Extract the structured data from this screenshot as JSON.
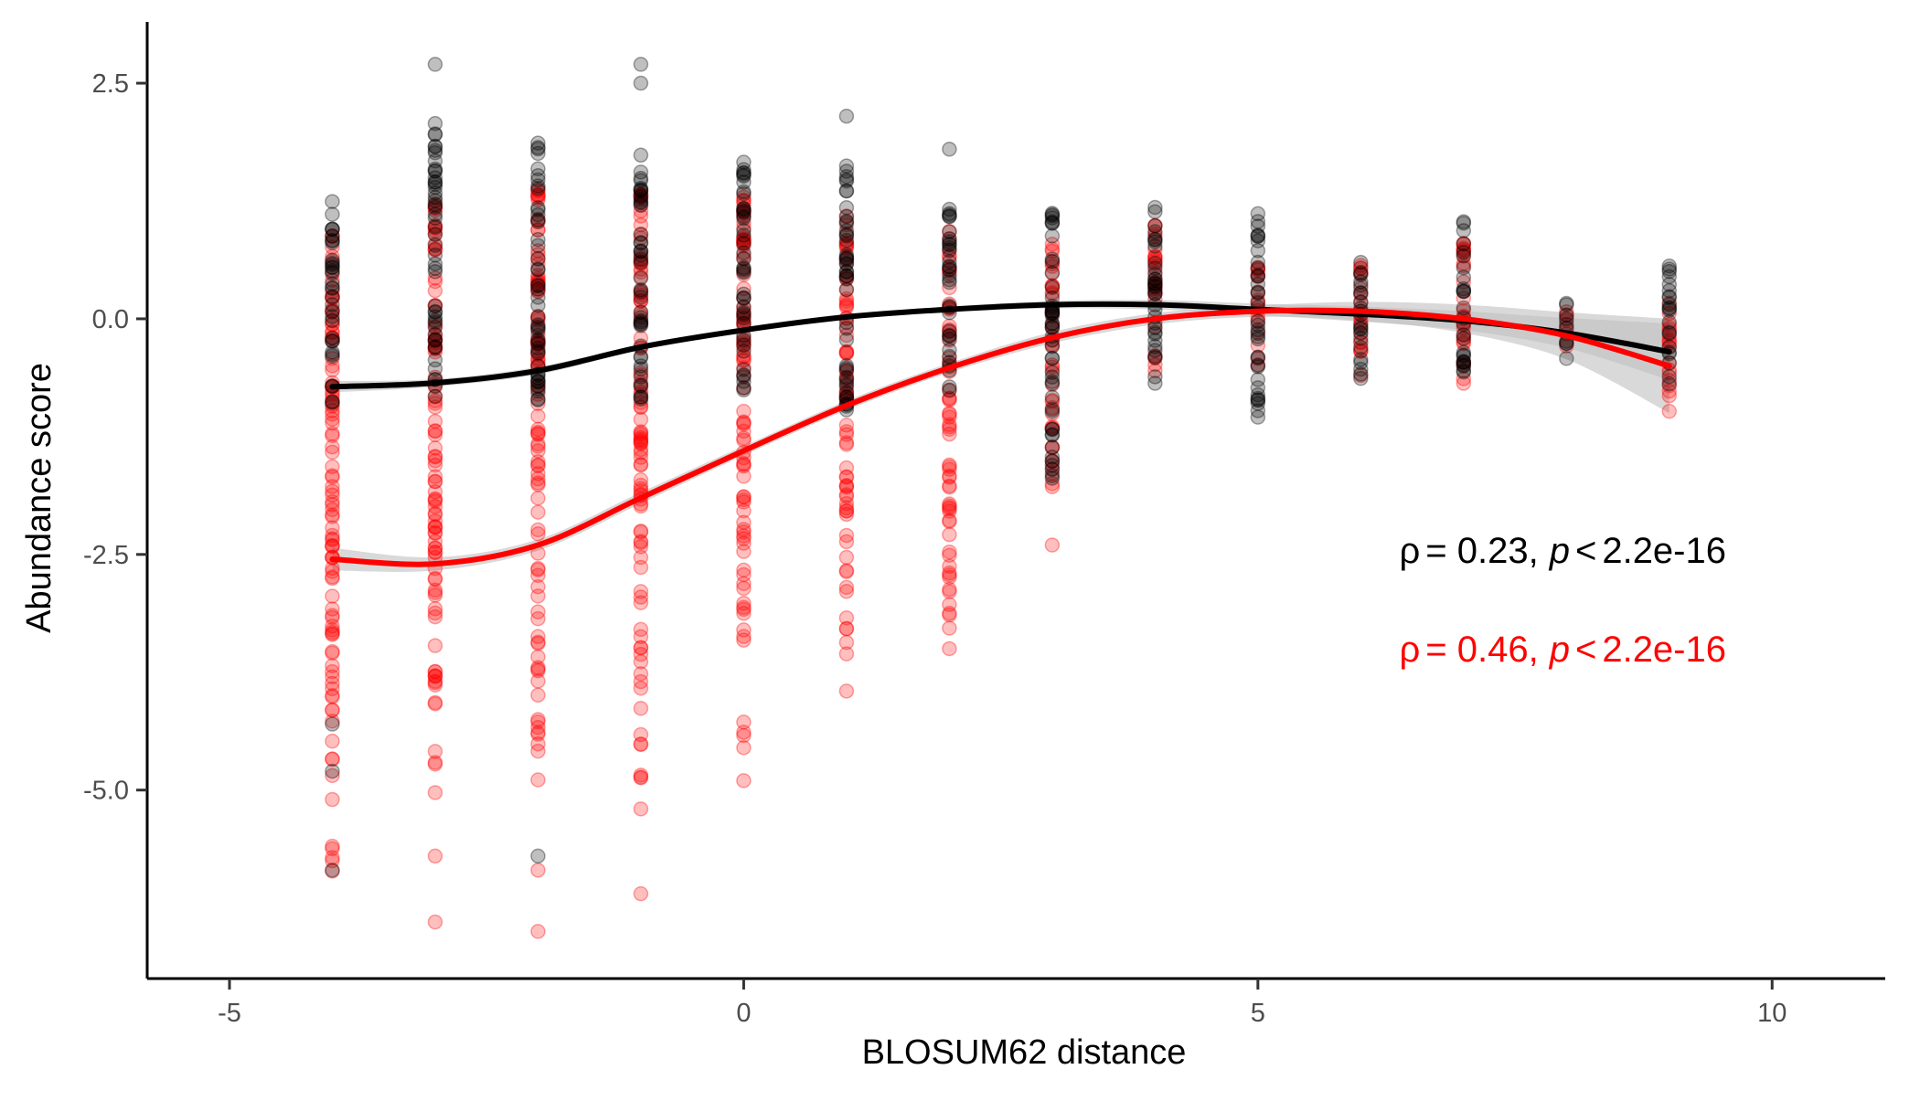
{
  "chart_data": {
    "type": "scatter",
    "title": "",
    "xlabel": "BLOSUM62 distance",
    "ylabel": "Abundance score",
    "xlim": [
      -5.8,
      11.1
    ],
    "ylim": [
      -7.0,
      3.15
    ],
    "xticks": [
      -5,
      0,
      5,
      10
    ],
    "xtick_labels": [
      "-5",
      "0",
      "5",
      "10"
    ],
    "yticks": [
      2.5,
      0.0,
      -2.5,
      -5.0
    ],
    "ytick_labels": [
      "2.5",
      "0.0",
      "-2.5",
      "-5.0"
    ],
    "grid": false,
    "legend": "none",
    "colors": {
      "black_series": "#000000",
      "red_series": "#ff0000",
      "ribbon": "#bfbfbf"
    },
    "annotations": [
      {
        "rho_symbol": "ρ",
        "eq": "= 0.23,",
        "p_symbol": "p",
        "lt": "<",
        "value": "2.2e-16",
        "color": "#000000"
      },
      {
        "rho_symbol": "ρ",
        "eq": "= 0.46,",
        "p_symbol": "p",
        "lt": "<",
        "value": "2.2e-16",
        "color": "#ff0000"
      }
    ],
    "point_groups": [
      {
        "x": -4,
        "black": [
          -0.9,
          1.25
        ],
        "red": [
          -6.0,
          0.9
        ],
        "black_extra": [
          -4.3,
          -4.8,
          -5.85
        ],
        "red_extra": [
          -5.1,
          -5.75
        ]
      },
      {
        "x": -3,
        "black": [
          -0.9,
          2.1
        ],
        "red": [
          -5.2,
          1.3
        ],
        "black_extra": [
          2.7
        ],
        "red_extra": [
          -5.7,
          -6.4
        ]
      },
      {
        "x": -2,
        "black": [
          -0.9,
          2.05
        ],
        "red": [
          -5.0,
          1.4
        ],
        "black_extra": [
          -5.7
        ],
        "red_extra": [
          -5.85,
          -6.5
        ]
      },
      {
        "x": -1,
        "black": [
          -0.9,
          1.8
        ],
        "red": [
          -5.0,
          1.5
        ],
        "black_extra": [
          2.7,
          2.5
        ],
        "red_extra": [
          -6.1,
          -5.2
        ]
      },
      {
        "x": 0,
        "black": [
          -0.9,
          1.75
        ],
        "red": [
          -4.6,
          1.3
        ],
        "black_extra": [],
        "red_extra": [
          -4.9,
          -4.55
        ]
      },
      {
        "x": 1,
        "black": [
          -1.0,
          1.8
        ],
        "red": [
          -3.6,
          1.2
        ],
        "black_extra": [
          2.15
        ],
        "red_extra": [
          -3.95
        ]
      },
      {
        "x": 2,
        "black": [
          -0.8,
          1.25
        ],
        "red": [
          -3.3,
          1.0
        ],
        "black_extra": [
          1.8
        ],
        "red_extra": [
          -3.5
        ]
      },
      {
        "x": 3,
        "black": [
          -1.8,
          1.2
        ],
        "red": [
          -1.9,
          0.8
        ],
        "black_extra": [],
        "red_extra": [
          -2.4
        ]
      },
      {
        "x": 4,
        "black": [
          -0.85,
          1.3
        ],
        "red": [
          -0.6,
          1.1
        ],
        "black_extra": [],
        "red_extra": []
      },
      {
        "x": 5,
        "black": [
          -1.05,
          1.2
        ],
        "red": [
          -0.5,
          0.6
        ],
        "black_extra": [],
        "red_extra": []
      },
      {
        "x": 6,
        "black": [
          -0.7,
          0.65
        ],
        "red": [
          -0.8,
          0.6
        ],
        "black_extra": [],
        "red_extra": []
      },
      {
        "x": 7,
        "black": [
          -0.6,
          1.1
        ],
        "red": [
          -0.95,
          0.85
        ],
        "black_extra": [],
        "red_extra": []
      },
      {
        "x": 8,
        "black": [
          -0.45,
          0.2
        ],
        "red": [
          -0.3,
          0.1
        ],
        "black_extra": [],
        "red_extra": []
      },
      {
        "x": 9,
        "black": [
          -0.7,
          0.6
        ],
        "red": [
          -1.0,
          0.25
        ],
        "black_extra": [],
        "red_extra": []
      }
    ],
    "series": [
      {
        "color": "#000000",
        "x": [
          -4,
          -3,
          -2,
          -1,
          0,
          1,
          2,
          3,
          4,
          5,
          6,
          7,
          8,
          9
        ],
        "y": [
          -0.72,
          -0.68,
          -0.55,
          -0.3,
          -0.12,
          0.02,
          0.1,
          0.15,
          0.15,
          0.1,
          0.05,
          -0.02,
          -0.15,
          -0.35
        ],
        "ribbon": [
          0.06,
          0.04,
          0.04,
          0.03,
          0.03,
          0.03,
          0.03,
          0.04,
          0.05,
          0.06,
          0.08,
          0.1,
          0.16,
          0.3
        ]
      },
      {
        "color": "#ff0000",
        "x": [
          -4,
          -3,
          -2,
          -1,
          0,
          1,
          2,
          3,
          4,
          5,
          6,
          7,
          8,
          9
        ],
        "y": [
          -2.55,
          -2.6,
          -2.4,
          -1.9,
          -1.4,
          -0.92,
          -0.52,
          -0.2,
          0.0,
          0.08,
          0.08,
          0.0,
          -0.18,
          -0.5
        ],
        "ribbon": [
          0.12,
          0.07,
          0.06,
          0.06,
          0.05,
          0.05,
          0.05,
          0.06,
          0.06,
          0.06,
          0.1,
          0.15,
          0.25,
          0.5
        ]
      }
    ]
  }
}
